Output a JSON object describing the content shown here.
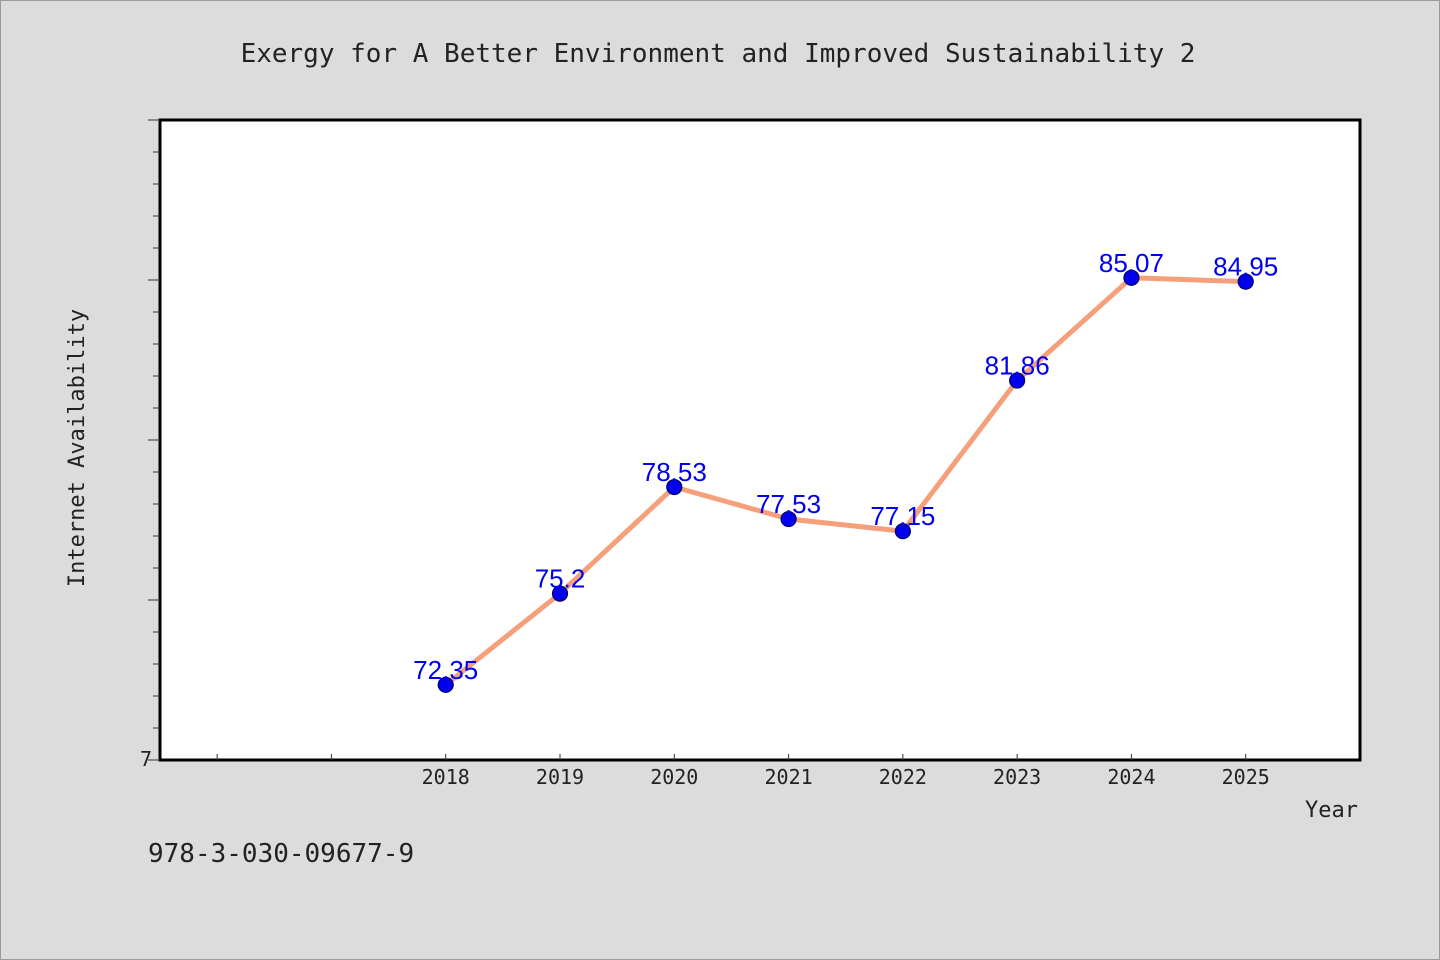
{
  "chart_data": {
    "type": "line",
    "title": "Exergy for A Better Environment and Improved Sustainability 2",
    "xlabel": "Year",
    "ylabel": "Internet Availability",
    "categories": [
      "2018",
      "2019",
      "2020",
      "2021",
      "2022",
      "2023",
      "2024",
      "2025"
    ],
    "series": [
      {
        "values": [
          72.35,
          75.2,
          78.53,
          77.53,
          77.15,
          81.86,
          85.07,
          84.95
        ],
        "labels": [
          "72.35",
          "75.2",
          "78.53",
          "77.53",
          "77.15",
          "81.86",
          "85.07",
          "84.95"
        ],
        "line_color": "#f5a07a",
        "marker_color": "#0000ee",
        "label_color": "#0000ee"
      }
    ],
    "ylim": [
      70,
      90
    ],
    "y_tick_labels": [
      "7"
    ],
    "y_major_step": 5,
    "y_minor_step": 1,
    "x_leading_slots": 2,
    "grid": false,
    "legend": "none",
    "plot_background": "#ffffff",
    "figure_background": "#dcdcdc"
  },
  "footer": {
    "isbn": "978-3-030-09677-9"
  }
}
